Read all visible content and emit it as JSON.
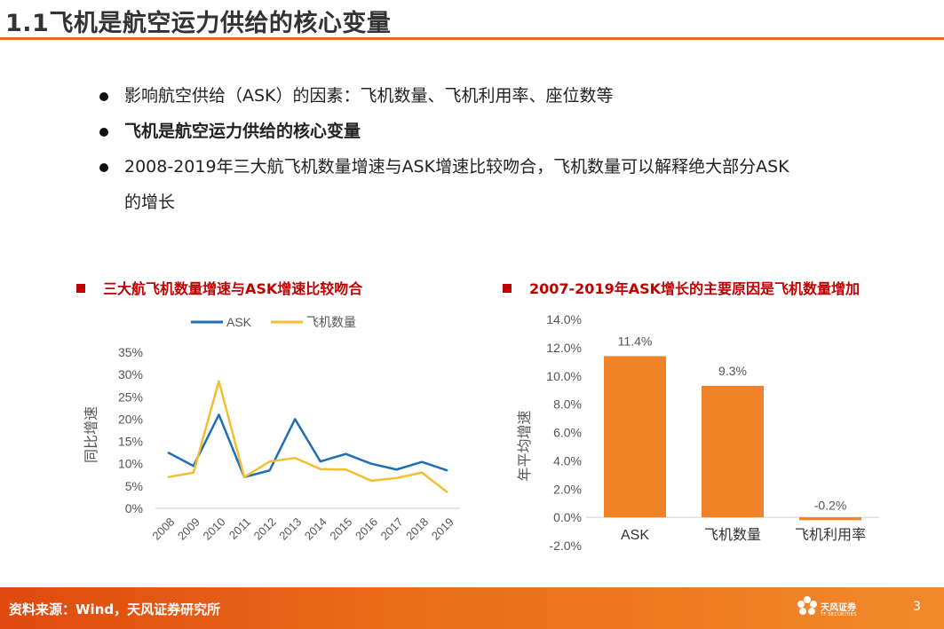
{
  "page": {
    "title": "1.1飞机是航空运力供给的核心变量",
    "page_number": "3",
    "accent_color": "#e8671a"
  },
  "bullets": [
    {
      "text": "影响航空供给（ASK）的因素：飞机数量、飞机利用率、座位数等",
      "bold": false
    },
    {
      "text": "飞机是航空运力供给的核心变量",
      "bold": true
    },
    {
      "text": "2008-2019年三大航飞机数量增速与ASK增速比较吻合，飞机数量可以解释绝大部分ASK",
      "bold": false
    },
    {
      "text": "的增长",
      "bold": false
    }
  ],
  "footer": {
    "source": "资料来源：Wind，天风证券研究所",
    "logo_text": "天风证券",
    "logo_sub": "TF SECURITIES",
    "logo_icon": "tf-flower-icon"
  },
  "chart_data": [
    {
      "type": "line",
      "title": "三大航飞机数量增速与ASK增速比较吻合",
      "categories": [
        "2008",
        "2009",
        "2010",
        "2011",
        "2012",
        "2013",
        "2014",
        "2015",
        "2016",
        "2017",
        "2018",
        "2019"
      ],
      "series": [
        {
          "name": "ASK",
          "color": "#1f6db5",
          "values": [
            12.5,
            9.5,
            21.0,
            7.0,
            8.5,
            20.0,
            10.5,
            12.2,
            10.0,
            8.7,
            10.4,
            8.5
          ]
        },
        {
          "name": "飞机数量",
          "color": "#f5bd32",
          "values": [
            7.0,
            8.0,
            28.5,
            7.0,
            10.5,
            11.3,
            8.8,
            8.7,
            6.2,
            6.8,
            8.0,
            3.6
          ]
        }
      ],
      "ylabel": "同比增速",
      "ylim": [
        0,
        35
      ],
      "yticks": [
        "0%",
        "5%",
        "10%",
        "15%",
        "20%",
        "25%",
        "30%",
        "35%"
      ],
      "legend": "top-center"
    },
    {
      "type": "bar",
      "title": "2007-2019年ASK增长的主要原因是飞机数量增加",
      "categories": [
        "ASK",
        "飞机数量",
        "飞机利用率"
      ],
      "values": [
        11.4,
        9.3,
        -0.2
      ],
      "data_labels": [
        "11.4%",
        "9.3%",
        "-0.2%"
      ],
      "color": "#f08228",
      "ylabel": "年平均增速",
      "ylim": [
        -2,
        14
      ],
      "yticks": [
        "-2.0%",
        "0.0%",
        "2.0%",
        "4.0%",
        "6.0%",
        "8.0%",
        "10.0%",
        "12.0%",
        "14.0%"
      ]
    }
  ]
}
